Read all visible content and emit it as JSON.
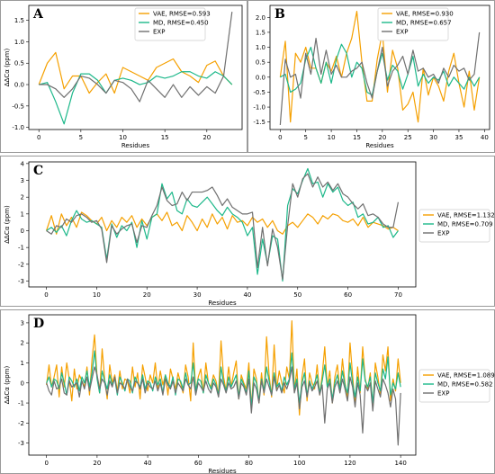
{
  "colors": {
    "VAE": "#f5a000",
    "MD": "#1db88a",
    "EXP": "#707070"
  },
  "chart_data": [
    {
      "panel": "A",
      "type": "line",
      "xlabel": "Residues",
      "ylabel": "ΔΔCα (ppm)",
      "xlim": [
        -1.2,
        24.2
      ],
      "ylim": [
        -1.05,
        1.85
      ],
      "xticks": [
        0,
        5,
        10,
        15,
        20
      ],
      "yticks": [
        -1.0,
        -0.5,
        0.0,
        0.5,
        1.0,
        1.5
      ],
      "legend": "top-right",
      "x": [
        0,
        1,
        2,
        3,
        4,
        5,
        6,
        7,
        8,
        9,
        10,
        11,
        12,
        13,
        14,
        15,
        16,
        17,
        18,
        19,
        20,
        21,
        22,
        23
      ],
      "series": [
        {
          "name": "VAE, RMSE=0.593",
          "color_key": "VAE",
          "values": [
            0.0,
            0.5,
            0.75,
            -0.1,
            0.2,
            0.2,
            -0.2,
            0.05,
            0.25,
            -0.2,
            0.4,
            0.3,
            0.2,
            0.1,
            0.4,
            0.5,
            0.6,
            0.3,
            0.2,
            0.05,
            0.45,
            0.55,
            0.2,
            0.0
          ]
        },
        {
          "name": "MD, RMSE=0.450",
          "color_key": "MD",
          "values": [
            0.0,
            0.05,
            -0.4,
            -0.92,
            -0.2,
            0.25,
            0.25,
            0.1,
            -0.2,
            0.1,
            0.15,
            0.1,
            0.0,
            0.05,
            0.2,
            0.15,
            0.2,
            0.3,
            0.3,
            0.2,
            0.15,
            0.3,
            0.2,
            0.0
          ]
        },
        {
          "name": "EXP",
          "color_key": "EXP",
          "values": [
            0.0,
            0.0,
            -0.1,
            -0.3,
            -0.1,
            0.2,
            0.15,
            0.0,
            -0.2,
            0.1,
            0.05,
            -0.1,
            -0.4,
            0.1,
            -0.1,
            -0.3,
            0.0,
            -0.3,
            -0.05,
            -0.25,
            -0.05,
            -0.2,
            0.2,
            1.7
          ]
        }
      ]
    },
    {
      "panel": "B",
      "type": "line",
      "xlabel": "Residues",
      "ylabel": "",
      "xlim": [
        -2,
        41
      ],
      "ylim": [
        -1.75,
        2.4
      ],
      "xticks": [
        0,
        5,
        10,
        15,
        20,
        25,
        30,
        35,
        40
      ],
      "yticks": [
        -1.5,
        -1.0,
        -0.5,
        0.0,
        0.5,
        1.0,
        1.5,
        2.0
      ],
      "legend": "top-right",
      "x": [
        0,
        1,
        2,
        3,
        4,
        5,
        6,
        7,
        8,
        9,
        10,
        11,
        12,
        13,
        14,
        15,
        16,
        17,
        18,
        19,
        20,
        21,
        22,
        23,
        24,
        25,
        26,
        27,
        28,
        29,
        30,
        31,
        32,
        33,
        34,
        35,
        36,
        37,
        38,
        39
      ],
      "series": [
        {
          "name": "VAE, RMSE=0.930",
          "color_key": "VAE",
          "values": [
            0.0,
            1.2,
            -1.5,
            0.8,
            0.5,
            1.0,
            0.3,
            0.3,
            -0.2,
            0.5,
            0.2,
            0.7,
            0.0,
            0.8,
            1.3,
            2.2,
            0.5,
            -0.8,
            -0.8,
            0.6,
            1.5,
            -0.5,
            0.9,
            0.3,
            -1.1,
            -0.9,
            -0.5,
            -1.5,
            0.3,
            -0.6,
            0.0,
            -0.3,
            -0.8,
            0.2,
            0.8,
            -0.2,
            -1.0,
            0.2,
            -1.1,
            0.0
          ]
        },
        {
          "name": "MD, RMSE=0.657",
          "color_key": "MD",
          "values": [
            0.0,
            0.1,
            -0.5,
            -0.4,
            -0.2,
            0.6,
            1.0,
            0.3,
            -0.2,
            0.5,
            -0.2,
            0.6,
            1.1,
            0.8,
            0.0,
            0.5,
            0.3,
            -0.5,
            -0.6,
            0.2,
            0.8,
            -0.1,
            0.4,
            0.2,
            -0.4,
            0.1,
            0.7,
            -0.3,
            0.1,
            -0.2,
            0.0,
            -0.1,
            0.2,
            -0.3,
            0.0,
            -0.2,
            -0.4,
            0.0,
            -0.3,
            0.0
          ]
        },
        {
          "name": "EXP",
          "color_key": "EXP",
          "values": [
            -1.6,
            0.6,
            0.0,
            0.1,
            -0.7,
            0.8,
            0.1,
            1.3,
            0.1,
            0.9,
            0.1,
            0.4,
            0.0,
            0.0,
            0.2,
            0.3,
            0.5,
            -0.2,
            -0.7,
            0.2,
            1.0,
            -0.3,
            0.2,
            0.4,
            0.7,
            0.1,
            0.9,
            0.2,
            0.3,
            0.0,
            0.1,
            -0.2,
            0.3,
            0.0,
            0.4,
            0.2,
            0.3,
            -0.1,
            0.1,
            1.5
          ]
        }
      ]
    },
    {
      "panel": "C",
      "type": "line",
      "xlabel": "Residues",
      "ylabel": "ΔΔCα (ppm)",
      "xlim": [
        -3.5,
        73.5
      ],
      "ylim": [
        -3.35,
        4.1
      ],
      "xticks": [
        0,
        10,
        20,
        30,
        40,
        50,
        60,
        70
      ],
      "yticks": [
        -3,
        -2,
        -1,
        0,
        1,
        2,
        3,
        4
      ],
      "legend": "right",
      "x": [
        0,
        1,
        2,
        3,
        4,
        5,
        6,
        7,
        8,
        9,
        10,
        11,
        12,
        13,
        14,
        15,
        16,
        17,
        18,
        19,
        20,
        21,
        22,
        23,
        24,
        25,
        26,
        27,
        28,
        29,
        30,
        31,
        32,
        33,
        34,
        35,
        36,
        37,
        38,
        39,
        40,
        41,
        42,
        43,
        44,
        45,
        46,
        47,
        48,
        49,
        50,
        51,
        52,
        53,
        54,
        55,
        56,
        57,
        58,
        59,
        60,
        61,
        62,
        63,
        64,
        65,
        66,
        67,
        68,
        69,
        70
      ],
      "series": [
        {
          "name": "VAE, RMSE=1.132",
          "color_key": "VAE",
          "values": [
            0.0,
            0.9,
            -0.2,
            1.0,
            0.3,
            0.8,
            0.2,
            1.1,
            0.9,
            0.6,
            0.4,
            0.8,
            0.0,
            0.6,
            0.2,
            0.8,
            0.5,
            0.9,
            0.2,
            0.7,
            0.3,
            0.8,
            1.0,
            0.6,
            1.1,
            0.3,
            0.5,
            0.0,
            0.9,
            0.5,
            0.0,
            0.7,
            0.2,
            1.0,
            0.4,
            0.8,
            0.1,
            0.9,
            0.5,
            0.6,
            0.3,
            0.8,
            0.5,
            0.7,
            0.2,
            0.6,
            0.0,
            -0.2,
            0.3,
            0.5,
            0.2,
            0.6,
            1.0,
            0.8,
            0.4,
            0.9,
            0.7,
            1.0,
            0.9,
            0.6,
            0.5,
            0.7,
            0.3,
            0.8,
            0.2,
            0.5,
            0.4,
            0.3,
            0.1,
            0.2,
            0.0
          ]
        },
        {
          "name": "MD, RMSE=0.709",
          "color_key": "MD",
          "values": [
            0.0,
            0.2,
            -0.1,
            0.3,
            -0.3,
            0.6,
            1.2,
            0.7,
            0.5,
            0.6,
            0.4,
            0.2,
            -1.7,
            0.4,
            -0.4,
            0.3,
            0.0,
            0.5,
            -1.0,
            0.6,
            -0.5,
            0.8,
            1.0,
            2.8,
            1.9,
            2.3,
            1.2,
            1.0,
            1.9,
            1.5,
            1.4,
            1.7,
            2.0,
            1.6,
            1.2,
            0.9,
            1.4,
            1.0,
            0.8,
            0.5,
            -0.3,
            0.2,
            -2.6,
            -0.5,
            -2.0,
            -0.3,
            -0.5,
            -3.0,
            1.5,
            2.5,
            2.2,
            3.0,
            3.7,
            2.8,
            2.9,
            2.0,
            2.8,
            2.3,
            2.6,
            1.8,
            1.5,
            1.7,
            0.8,
            1.0,
            0.4,
            0.5,
            0.8,
            0.2,
            0.3,
            -0.4,
            0.0
          ]
        },
        {
          "name": "EXP",
          "color_key": "EXP",
          "values": [
            0.0,
            -0.2,
            0.3,
            0.2,
            0.7,
            0.5,
            0.9,
            1.0,
            0.8,
            0.5,
            0.6,
            0.1,
            -1.9,
            0.3,
            -0.2,
            0.1,
            0.3,
            0.4,
            -0.7,
            0.3,
            0.2,
            0.9,
            1.5,
            2.6,
            1.8,
            1.5,
            1.6,
            2.3,
            1.8,
            2.3,
            2.3,
            2.3,
            2.4,
            2.6,
            2.1,
            1.5,
            1.9,
            1.4,
            1.2,
            1.0,
            1.0,
            1.1,
            -2.2,
            0.2,
            -2.1,
            0.1,
            -1.0,
            -2.9,
            0.3,
            2.8,
            2.0,
            3.1,
            3.4,
            2.6,
            3.2,
            2.6,
            2.9,
            2.4,
            2.8,
            2.2,
            2.0,
            1.6,
            1.3,
            1.6,
            0.9,
            1.0,
            0.8,
            0.4,
            0.2,
            0.2,
            1.7
          ]
        }
      ]
    },
    {
      "panel": "D",
      "type": "line",
      "xlabel": "Residues",
      "ylabel": "ΔΔCα (ppm)",
      "xlim": [
        -7,
        146
      ],
      "ylim": [
        -3.6,
        3.4
      ],
      "xticks": [
        0,
        20,
        40,
        60,
        80,
        100,
        120,
        140
      ],
      "yticks": [
        -3,
        -2,
        -1,
        0,
        1,
        2,
        3
      ],
      "legend": "right",
      "series": [
        {
          "name": "VAE, RMSE=1.089",
          "color_key": "VAE",
          "values": [
            -0.1,
            0.9,
            -0.2,
            0.3,
            0.9,
            -0.7,
            0.8,
            -0.2,
            1.0,
            0.2,
            -0.9,
            0.7,
            -0.3,
            0.4,
            0.1,
            -0.2,
            0.8,
            -0.6,
            1.2,
            2.4,
            0.3,
            -0.5,
            1.7,
            0.2,
            -0.8,
            0.9,
            0.0,
            0.4,
            -0.4,
            0.6,
            -0.3,
            0.2,
            0.1,
            -0.5,
            0.8,
            -0.2,
            0.5,
            -0.8,
            0.9,
            0.3,
            -0.4,
            0.4,
            0.0,
            1.0,
            -0.3,
            0.6,
            -0.1,
            0.4,
            -0.6,
            0.7,
            0.2,
            -0.3,
            0.5,
            0.0,
            -0.5,
            0.9,
            0.3,
            -0.9,
            2.0,
            -0.4,
            0.3,
            0.7,
            -0.5,
            1.0,
            0.0,
            -0.2,
            0.4,
            0.1,
            -0.6,
            2.1,
            0.3,
            -0.4,
            0.8,
            -0.2,
            0.5,
            1.1,
            -0.8,
            0.4,
            0.0,
            -0.3,
            1.0,
            -1.2,
            0.7,
            0.2,
            -1.0,
            0.5,
            -0.6,
            2.3,
            0.4,
            -0.7,
            1.9,
            -0.3,
            0.6,
            0.0,
            -0.5,
            0.8,
            0.2,
            3.1,
            -0.4,
            0.7,
            -1.6,
            0.3,
            1.2,
            -0.9,
            0.5,
            0.0,
            -0.3,
            0.9,
            -0.6,
            0.4,
            1.8,
            -0.2,
            0.6,
            -1.0,
            0.3,
            0.9,
            -0.4,
            1.2,
            0.0,
            -0.7,
            2.0,
            0.4,
            -1.1,
            0.8,
            -0.5,
            1.8,
            0.2,
            -0.3,
            0.5,
            -1.2,
            1.0,
            0.3,
            -0.6,
            1.4,
            0.6,
            1.8,
            -0.9,
            0.2,
            -0.4,
            1.2,
            0.0
          ]
        },
        {
          "name": "MD, RMSE=0.582",
          "color_key": "MD",
          "values": [
            0.0,
            0.3,
            -0.2,
            0.2,
            0.1,
            -0.3,
            0.5,
            0.0,
            -0.6,
            0.3,
            0.1,
            -0.2,
            0.2,
            -0.4,
            0.3,
            0.0,
            0.6,
            -0.2,
            0.5,
            1.6,
            0.2,
            -0.5,
            0.6,
            0.1,
            -0.3,
            0.4,
            -0.1,
            0.2,
            -0.6,
            0.3,
            0.0,
            -0.4,
            0.2,
            0.1,
            -0.5,
            0.3,
            0.0,
            -0.2,
            0.4,
            -0.3,
            0.1,
            0.0,
            -0.4,
            0.3,
            -0.1,
            0.2,
            -0.5,
            0.4,
            0.0,
            -0.2,
            0.3,
            -0.6,
            0.2,
            0.1,
            -0.3,
            0.5,
            -0.1,
            0.0,
            1.0,
            -0.4,
            0.2,
            0.1,
            -0.5,
            0.4,
            0.0,
            -0.3,
            0.2,
            -0.1,
            -0.6,
            0.8,
            0.0,
            -0.4,
            0.3,
            -0.2,
            0.1,
            0.4,
            -0.7,
            0.2,
            -0.1,
            -0.5,
            0.6,
            -1.2,
            0.3,
            0.0,
            -0.9,
            0.2,
            -0.4,
            0.8,
            0.1,
            -0.6,
            0.5,
            -0.2,
            0.0,
            -0.4,
            0.3,
            -0.1,
            0.2,
            1.5,
            -0.3,
            0.2,
            -1.0,
            0.0,
            0.5,
            -0.6,
            0.1,
            -0.3,
            0.0,
            0.4,
            -0.5,
            0.1,
            0.9,
            -0.2,
            0.2,
            -0.8,
            0.0,
            0.4,
            -0.3,
            0.6,
            -0.1,
            -0.5,
            1.0,
            0.0,
            -0.7,
            0.3,
            -0.4,
            1.2,
            0.1,
            -0.2,
            0.3,
            -1.0,
            0.5,
            0.0,
            -0.4,
            0.7,
            0.2,
            1.3,
            -0.6,
            0.0,
            -0.3,
            0.5,
            -0.2
          ]
        },
        {
          "name": "EXP",
          "color_key": "EXP",
          "values": [
            0.0,
            -0.4,
            -0.6,
            0.1,
            -0.3,
            -0.2,
            0.2,
            -0.5,
            -0.6,
            0.1,
            -0.2,
            -0.1,
            0.0,
            -0.7,
            0.1,
            -0.3,
            0.3,
            -0.4,
            0.2,
            0.8,
            0.4,
            -0.3,
            0.2,
            0.0,
            -0.6,
            0.1,
            -0.2,
            0.3,
            -0.5,
            0.0,
            -0.1,
            -0.3,
            0.2,
            -0.2,
            -0.4,
            0.1,
            0.0,
            -0.3,
            0.2,
            -0.5,
            0.0,
            -0.2,
            -0.3,
            0.1,
            -0.4,
            0.0,
            -0.6,
            0.2,
            -0.1,
            -0.3,
            0.1,
            -0.5,
            0.0,
            -0.2,
            -0.4,
            0.2,
            -0.1,
            -0.3,
            0.3,
            -0.6,
            0.0,
            -0.2,
            -0.4,
            0.1,
            -0.3,
            -0.5,
            0.0,
            -0.2,
            -0.7,
            0.2,
            -0.1,
            -0.5,
            0.0,
            -0.3,
            -0.2,
            0.1,
            -0.8,
            0.0,
            -0.2,
            -0.6,
            0.2,
            -1.5,
            0.0,
            -0.3,
            -1.0,
            0.1,
            -0.5,
            0.2,
            -0.2,
            -0.6,
            0.3,
            -0.4,
            -0.1,
            -0.5,
            0.0,
            -0.3,
            0.1,
            0.8,
            -0.5,
            0.0,
            -1.3,
            -0.2,
            0.1,
            -0.7,
            0.0,
            -0.4,
            -0.2,
            0.1,
            -0.6,
            -0.1,
            -2.0,
            -0.3,
            0.0,
            -1.0,
            -0.2,
            0.1,
            -0.5,
            0.2,
            -0.3,
            -0.9,
            0.3,
            -0.2,
            -1.2,
            0.0,
            -0.6,
            -2.5,
            -0.1,
            -0.4,
            0.0,
            -1.4,
            0.1,
            -0.3,
            -0.7,
            0.2,
            -0.1,
            -0.5,
            -1.2,
            -0.3,
            -0.8,
            -3.1,
            -0.5
          ]
        }
      ]
    }
  ]
}
